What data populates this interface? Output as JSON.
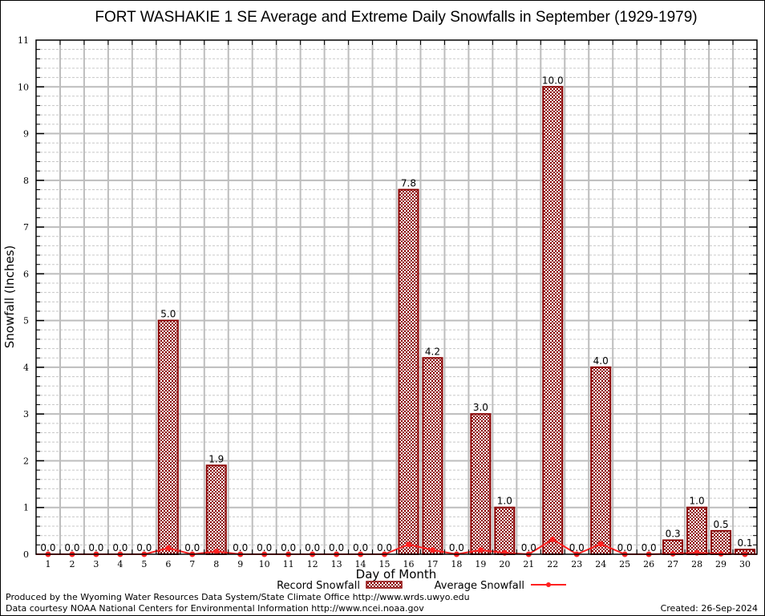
{
  "chart_data": {
    "type": "bar",
    "title": "FORT WASHAKIE 1 SE Average and Extreme Daily Snowfalls in September (1929-1979)",
    "xlabel": "Day of Month",
    "ylabel": "Snowfall (Inches)",
    "ylim": [
      0,
      11
    ],
    "yticks": [
      0,
      1,
      2,
      3,
      4,
      5,
      6,
      7,
      8,
      9,
      10,
      11
    ],
    "grid": true,
    "categories": [
      "1",
      "2",
      "3",
      "4",
      "5",
      "6",
      "7",
      "8",
      "9",
      "10",
      "11",
      "12",
      "13",
      "14",
      "15",
      "16",
      "17",
      "18",
      "19",
      "20",
      "21",
      "22",
      "23",
      "24",
      "25",
      "26",
      "27",
      "28",
      "29",
      "30"
    ],
    "series": [
      {
        "name": "Record Snowfall",
        "type": "bar",
        "color": "#8b0000",
        "values": [
          0.0,
          0.0,
          0.0,
          0.0,
          0.0,
          5.0,
          0.0,
          1.9,
          0.0,
          0.0,
          0.0,
          0.0,
          0.0,
          0.0,
          0.0,
          7.8,
          4.2,
          0.0,
          3.0,
          1.0,
          0.0,
          10.0,
          0.0,
          4.0,
          0.0,
          0.0,
          0.3,
          1.0,
          0.5,
          0.1
        ],
        "labels": [
          "0.0",
          "0.0",
          "0.0",
          "0.0",
          "0.0",
          "5.0",
          "0.0",
          "1.9",
          "0.0",
          "0.0",
          "0.0",
          "0.0",
          "0.0",
          "0.0",
          "0.0",
          "7.8",
          "4.2",
          "0.0",
          "3.0",
          "1.0",
          "0.0",
          "10.0",
          "0.0",
          "4.0",
          "0.0",
          "0.0",
          "0.3",
          "1.0",
          "0.5",
          "0.1"
        ]
      },
      {
        "name": "Average Snowfall",
        "type": "line",
        "color": "#ff2020",
        "values": [
          0.0,
          0.0,
          0.0,
          0.0,
          0.0,
          0.13,
          0.0,
          0.06,
          0.0,
          0.0,
          0.0,
          0.0,
          0.0,
          0.0,
          0.0,
          0.21,
          0.09,
          0.0,
          0.09,
          0.03,
          0.0,
          0.32,
          0.0,
          0.22,
          0.0,
          0.0,
          0.01,
          0.03,
          0.01,
          0.0
        ]
      }
    ],
    "legend": {
      "placement": "bottom-center",
      "entries": [
        "Record Snowfall",
        "Average Snowfall"
      ]
    }
  },
  "footer": {
    "produced_by": "Produced by the Wyoming Water Resources Data System/State Climate Office http://www.wrds.uwyo.edu",
    "courtesy": "Data courtesy NOAA National Centers for Environmental Information http://www.ncei.noaa.gov",
    "created": "Created: 26-Sep-2024"
  }
}
